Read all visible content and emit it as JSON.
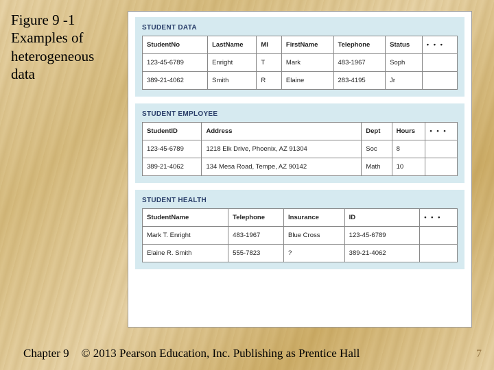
{
  "title": "Figure 9 -1 Examples of heterogeneous data",
  "footer": {
    "chapter": "Chapter 9",
    "copyright": "© 2013 Pearson Education, Inc.  Publishing as Prentice Hall",
    "page": "7"
  },
  "figure": {
    "background_color": "#ffffff",
    "panel_background": "#d6eaf0",
    "border_color": "#888888",
    "title_color": "#2a3f6a",
    "panels": [
      {
        "title": "STUDENT DATA",
        "columns": [
          "StudentNo",
          "LastName",
          "MI",
          "FirstName",
          "Telephone",
          "Status",
          "• • •"
        ],
        "rows": [
          [
            "123-45-6789",
            "Enright",
            "T",
            "Mark",
            "483-1967",
            "Soph",
            ""
          ],
          [
            "389-21-4062",
            "Smith",
            "R",
            "Elaine",
            "283-4195",
            "Jr",
            ""
          ]
        ],
        "col_widths": [
          "78px",
          "58px",
          "30px",
          "62px",
          "62px",
          "44px",
          "42px"
        ]
      },
      {
        "title": "STUDENT EMPLOYEE",
        "columns": [
          "StudentID",
          "Address",
          "Dept",
          "Hours",
          "• • •"
        ],
        "rows": [
          [
            "123-45-6789",
            "1218 Elk Drive, Phoenix, AZ 91304",
            "Soc",
            "8",
            ""
          ],
          [
            "389-21-4062",
            "134 Mesa Road, Tempe, AZ 90142",
            "Math",
            "10",
            ""
          ]
        ],
        "col_widths": [
          "78px",
          "210px",
          "40px",
          "44px",
          "42px"
        ]
      },
      {
        "title": "STUDENT HEALTH",
        "columns": [
          "StudentName",
          "Telephone",
          "Insurance",
          "ID",
          "• • •"
        ],
        "rows": [
          [
            "Mark T. Enright",
            "483-1967",
            "Blue Cross",
            "123-45-6789",
            ""
          ],
          [
            "Elaine R. Smith",
            "555-7823",
            "?",
            "389-21-4062",
            ""
          ]
        ],
        "col_widths": [
          "96px",
          "62px",
          "68px",
          "84px",
          "42px"
        ]
      }
    ]
  }
}
